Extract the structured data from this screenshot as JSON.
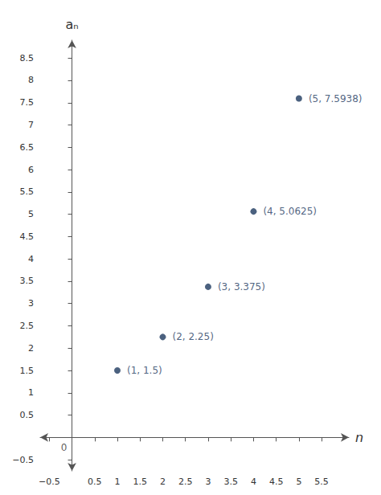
{
  "chart_data": {
    "type": "scatter",
    "x": [
      1,
      2,
      3,
      4,
      5
    ],
    "values": [
      1.5,
      2.25,
      3.375,
      5.0625,
      7.5938
    ],
    "value_labels": [
      "(1, 1.5)",
      "(2, 2.25)",
      "(3, 3.375)",
      "(4, 5.0625)",
      "(5, 7.5938)"
    ],
    "data_labels": true,
    "color": "#1e3a5f",
    "xlabel": "n",
    "ylabel": "aₙ",
    "xlim": [
      -0.7,
      6.1
    ],
    "ylim": [
      -0.75,
      8.9
    ],
    "xticks": [
      {
        "value": -0.5,
        "label": "−0.5"
      },
      0,
      0.5,
      1,
      1.5,
      2,
      2.5,
      3,
      3.5,
      4,
      4.5,
      5,
      5.5
    ],
    "yticks": [
      {
        "value": -0.5,
        "label": "−0.5"
      },
      0,
      0.5,
      1,
      1.5,
      2,
      2.5,
      3,
      3.5,
      4,
      4.5,
      5,
      5.5,
      6,
      6.5,
      7,
      7.5,
      8,
      8.5
    ],
    "grid": false,
    "annotations": [
      {
        "text": "0",
        "x": 0,
        "y": 0
      }
    ]
  }
}
